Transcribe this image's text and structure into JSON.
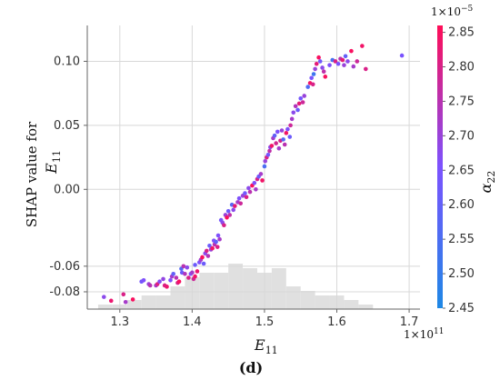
{
  "chart_data": {
    "type": "scatter",
    "title": "",
    "xlabel_main": "E",
    "xlabel_sub": "11",
    "ylabel_line1": "SHAP value for",
    "ylabel_line2_main": "E",
    "ylabel_line2_sub": "11",
    "xlim": [
      1.255,
      1.715
    ],
    "ylim": [
      -0.0935,
      0.128
    ],
    "x_ticks": [
      1.3,
      1.4,
      1.5,
      1.6,
      1.7
    ],
    "x_tick_labels": [
      "1.3",
      "1.4",
      "1.5",
      "1.6",
      "1.7"
    ],
    "y_ticks": [
      -0.08,
      -0.06,
      0.0,
      0.05,
      0.1
    ],
    "y_tick_labels": [
      "-0.08",
      "-0.06",
      "0.00",
      "0.05",
      "0.10"
    ],
    "x_offset_base": "1×10",
    "x_offset_exp": "11",
    "grid": true,
    "colorbar": {
      "label_main": "α",
      "label_sub": "22",
      "offset_base": "1×10",
      "offset_exp": "−5",
      "range": [
        2.45,
        2.86
      ],
      "ticks": [
        2.45,
        2.5,
        2.55,
        2.6,
        2.65,
        2.7,
        2.75,
        2.8,
        2.85
      ],
      "tick_labels": [
        "2.45",
        "2.50",
        "2.55",
        "2.60",
        "2.65",
        "2.70",
        "2.75",
        "2.80",
        "2.85"
      ],
      "color_low": "#1e88e5",
      "color_mid": "#7c52ff",
      "color_high": "#ff0d57"
    },
    "histogram": {
      "bin_edges": [
        1.27,
        1.29,
        1.31,
        1.33,
        1.35,
        1.37,
        1.39,
        1.41,
        1.43,
        1.45,
        1.47,
        1.49,
        1.51,
        1.53,
        1.55,
        1.57,
        1.59,
        1.61,
        1.63,
        1.65,
        1.67,
        1.69
      ],
      "counts": [
        1,
        1,
        2,
        3,
        3,
        5,
        7,
        8,
        8,
        10,
        9,
        8,
        9,
        5,
        4,
        3,
        3,
        2,
        1,
        0,
        0
      ],
      "color": "#e0e0e0"
    },
    "points": [
      [
        1.278,
        -0.084,
        2.68
      ],
      [
        1.288,
        -0.087,
        2.83
      ],
      [
        1.305,
        -0.082,
        2.8
      ],
      [
        1.308,
        -0.088,
        2.72
      ],
      [
        1.318,
        -0.086,
        2.85
      ],
      [
        1.33,
        -0.072,
        2.64
      ],
      [
        1.333,
        -0.071,
        2.66
      ],
      [
        1.34,
        -0.074,
        2.7
      ],
      [
        1.342,
        -0.075,
        2.75
      ],
      [
        1.35,
        -0.075,
        2.72
      ],
      [
        1.352,
        -0.074,
        2.81
      ],
      [
        1.355,
        -0.072,
        2.67
      ],
      [
        1.36,
        -0.07,
        2.69
      ],
      [
        1.362,
        -0.075,
        2.8
      ],
      [
        1.365,
        -0.076,
        2.83
      ],
      [
        1.37,
        -0.071,
        2.66
      ],
      [
        1.372,
        -0.068,
        2.72
      ],
      [
        1.374,
        -0.066,
        2.6
      ],
      [
        1.378,
        -0.069,
        2.75
      ],
      [
        1.38,
        -0.073,
        2.8
      ],
      [
        1.382,
        -0.072,
        2.85
      ],
      [
        1.385,
        -0.062,
        2.57
      ],
      [
        1.386,
        -0.065,
        2.62
      ],
      [
        1.388,
        -0.06,
        2.75
      ],
      [
        1.39,
        -0.066,
        2.74
      ],
      [
        1.393,
        -0.061,
        2.68
      ],
      [
        1.395,
        -0.069,
        2.8
      ],
      [
        1.398,
        -0.066,
        2.66
      ],
      [
        1.4,
        -0.065,
        2.72
      ],
      [
        1.402,
        -0.07,
        2.78
      ],
      [
        1.404,
        -0.068,
        2.84
      ],
      [
        1.404,
        -0.059,
        2.62
      ],
      [
        1.407,
        -0.064,
        2.83
      ],
      [
        1.41,
        -0.057,
        2.66
      ],
      [
        1.412,
        -0.055,
        2.72
      ],
      [
        1.414,
        -0.053,
        2.85
      ],
      [
        1.416,
        -0.058,
        2.62
      ],
      [
        1.418,
        -0.05,
        2.68
      ],
      [
        1.42,
        -0.048,
        2.8
      ],
      [
        1.422,
        -0.052,
        2.74
      ],
      [
        1.424,
        -0.044,
        2.62
      ],
      [
        1.426,
        -0.047,
        2.7
      ],
      [
        1.428,
        -0.046,
        2.84
      ],
      [
        1.43,
        -0.04,
        2.66
      ],
      [
        1.431,
        -0.043,
        2.75
      ],
      [
        1.433,
        -0.041,
        2.6
      ],
      [
        1.435,
        -0.045,
        2.8
      ],
      [
        1.436,
        -0.036,
        2.66
      ],
      [
        1.438,
        -0.039,
        2.72
      ],
      [
        1.44,
        -0.024,
        2.64
      ],
      [
        1.442,
        -0.026,
        2.68
      ],
      [
        1.444,
        -0.028,
        2.8
      ],
      [
        1.446,
        -0.02,
        2.7
      ],
      [
        1.448,
        -0.022,
        2.85
      ],
      [
        1.45,
        -0.017,
        2.62
      ],
      [
        1.452,
        -0.02,
        2.76
      ],
      [
        1.455,
        -0.012,
        2.58
      ],
      [
        1.457,
        -0.016,
        2.68
      ],
      [
        1.459,
        -0.013,
        2.82
      ],
      [
        1.463,
        -0.01,
        2.72
      ],
      [
        1.465,
        -0.007,
        2.66
      ],
      [
        1.467,
        -0.011,
        2.78
      ],
      [
        1.47,
        -0.005,
        2.7
      ],
      [
        1.473,
        -0.003,
        2.63
      ],
      [
        1.475,
        -0.006,
        2.8
      ],
      [
        1.478,
        0.001,
        2.68
      ],
      [
        1.48,
        -0.002,
        2.75
      ],
      [
        1.483,
        0.003,
        2.85
      ],
      [
        1.486,
        0.005,
        2.66
      ],
      [
        1.488,
        0.0,
        2.72
      ],
      [
        1.49,
        0.008,
        2.8
      ],
      [
        1.492,
        0.01,
        2.62
      ],
      [
        1.495,
        0.012,
        2.72
      ],
      [
        1.497,
        0.007,
        2.84
      ],
      [
        1.5,
        0.018,
        2.55
      ],
      [
        1.501,
        0.022,
        2.7
      ],
      [
        1.503,
        0.025,
        2.8
      ],
      [
        1.505,
        0.027,
        2.64
      ],
      [
        1.507,
        0.03,
        2.76
      ],
      [
        1.508,
        0.033,
        2.68
      ],
      [
        1.51,
        0.034,
        2.84
      ],
      [
        1.512,
        0.04,
        2.72
      ],
      [
        1.514,
        0.042,
        2.6
      ],
      [
        1.516,
        0.036,
        2.79
      ],
      [
        1.518,
        0.045,
        2.66
      ],
      [
        1.52,
        0.032,
        2.72
      ],
      [
        1.522,
        0.038,
        2.8
      ],
      [
        1.524,
        0.046,
        2.7
      ],
      [
        1.526,
        0.039,
        2.57
      ],
      [
        1.528,
        0.035,
        2.75
      ],
      [
        1.53,
        0.044,
        2.84
      ],
      [
        1.532,
        0.047,
        2.66
      ],
      [
        1.535,
        0.041,
        2.62
      ],
      [
        1.536,
        0.05,
        2.78
      ],
      [
        1.538,
        0.055,
        2.72
      ],
      [
        1.54,
        0.06,
        2.68
      ],
      [
        1.543,
        0.065,
        2.74
      ],
      [
        1.546,
        0.062,
        2.62
      ],
      [
        1.548,
        0.067,
        2.82
      ],
      [
        1.55,
        0.071,
        2.64
      ],
      [
        1.553,
        0.068,
        2.78
      ],
      [
        1.555,
        0.073,
        2.7
      ],
      [
        1.56,
        0.08,
        2.56
      ],
      [
        1.563,
        0.083,
        2.84
      ],
      [
        1.565,
        0.087,
        2.65
      ],
      [
        1.567,
        0.082,
        2.8
      ],
      [
        1.568,
        0.09,
        2.52
      ],
      [
        1.57,
        0.094,
        2.7
      ],
      [
        1.572,
        0.098,
        2.82
      ],
      [
        1.575,
        0.103,
        2.85
      ],
      [
        1.577,
        0.1,
        2.63
      ],
      [
        1.58,
        0.095,
        2.68
      ],
      [
        1.582,
        0.092,
        2.76
      ],
      [
        1.584,
        0.088,
        2.85
      ],
      [
        1.59,
        0.097,
        2.66
      ],
      [
        1.594,
        0.101,
        2.54
      ],
      [
        1.598,
        0.1,
        2.8
      ],
      [
        1.602,
        0.098,
        2.65
      ],
      [
        1.605,
        0.102,
        2.75
      ],
      [
        1.608,
        0.101,
        2.82
      ],
      [
        1.61,
        0.097,
        2.7
      ],
      [
        1.612,
        0.104,
        2.6
      ],
      [
        1.615,
        0.1,
        2.68
      ],
      [
        1.62,
        0.108,
        2.85
      ],
      [
        1.623,
        0.096,
        2.72
      ],
      [
        1.628,
        0.1,
        2.78
      ],
      [
        1.635,
        0.112,
        2.84
      ],
      [
        1.64,
        0.094,
        2.8
      ],
      [
        1.69,
        0.1045,
        2.65
      ]
    ]
  },
  "figure": {
    "panel_label": "(d)"
  }
}
